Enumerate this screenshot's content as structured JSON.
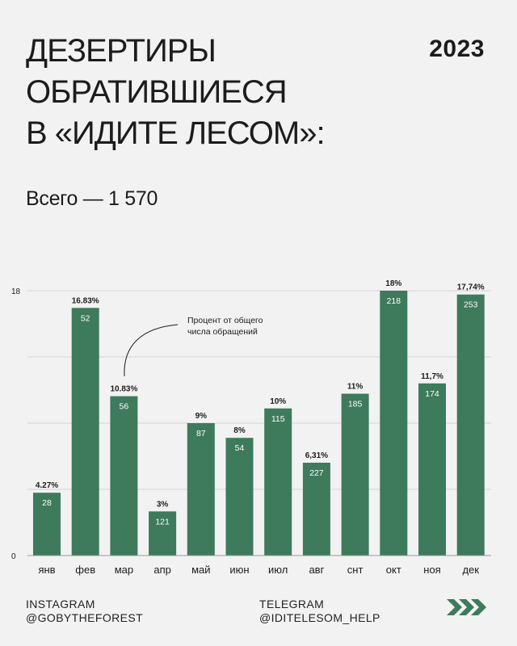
{
  "title_lines": [
    "ДЕЗЕРТИРЫ",
    "ОБРАТИВШИЕСЯ",
    "В «ИДИТЕ ЛЕСОМ»:"
  ],
  "year": "2023",
  "total": "Всего — 1 570",
  "annotation": [
    "Процент от общего",
    "числа обращений"
  ],
  "footer": {
    "instagram_label": "INSTAGRAM",
    "instagram_handle": "@GOBYTHEFOREST",
    "telegram_label": "TELEGRAM",
    "telegram_handle": "@IDITELESOM_HELP"
  },
  "colors": {
    "bar": "#3e7a5c",
    "background": "#f2f2f2",
    "text": "#1c1c1c",
    "grid": "#d4d4d4"
  },
  "chart_data": {
    "type": "bar",
    "title": "",
    "xlabel": "",
    "ylabel": "",
    "ylim": [
      0,
      18
    ],
    "y_ticks": [
      "0",
      "18"
    ],
    "grid": true,
    "categories": [
      "янв",
      "фев",
      "мар",
      "апр",
      "май",
      "июн",
      "июл",
      "авг",
      "снт",
      "окт",
      "ноя",
      "дек"
    ],
    "values": [
      4.27,
      16.83,
      10.83,
      3,
      9,
      8,
      10,
      6.31,
      11,
      18,
      11.7,
      17.74
    ],
    "value_labels": [
      "4.27%",
      "16.83%",
      "10.83%",
      "3%",
      "9%",
      "8%",
      "10%",
      "6,31%",
      "11%",
      "18%",
      "11,7%",
      "17,74%"
    ],
    "counts": [
      "28",
      "52",
      "56",
      "121",
      "87",
      "54",
      "115",
      "227",
      "185",
      "218",
      "174",
      "253"
    ]
  }
}
